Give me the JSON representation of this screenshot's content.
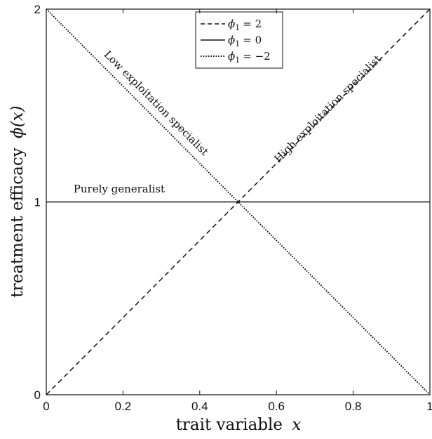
{
  "chart_data": {
    "type": "line",
    "xlabel": "trait variable",
    "xlabel_var": "x",
    "ylabel": "treatment efficacy",
    "ylabel_var": "ϕ(x)",
    "xlim": [
      0,
      1
    ],
    "ylim": [
      0,
      2
    ],
    "x_ticks": [
      "0",
      "0.2",
      "0.4",
      "0.6",
      "0.8",
      "1"
    ],
    "x_tick_values": [
      0,
      0.2,
      0.4,
      0.6,
      0.8,
      1
    ],
    "y_ticks": [
      "0",
      "1",
      "2"
    ],
    "y_tick_values": [
      0,
      1,
      2
    ],
    "grid": false,
    "legend_position": "top-center",
    "series": [
      {
        "legend_symbol": "ϕ",
        "legend_sub": "1",
        "legend_value": "= 2",
        "style": "dashed",
        "x": [
          0,
          1
        ],
        "y": [
          0,
          2
        ]
      },
      {
        "legend_symbol": "ϕ",
        "legend_sub": "1",
        "legend_value": "= 0",
        "style": "solid",
        "x": [
          0,
          1
        ],
        "y": [
          1,
          1
        ]
      },
      {
        "legend_symbol": "ϕ",
        "legend_sub": "1",
        "legend_value": "= −2",
        "style": "dotted",
        "x": [
          0,
          1
        ],
        "y": [
          2,
          0
        ]
      }
    ],
    "annotations": [
      {
        "text": "Low exploitation specialist",
        "x": 0.28,
        "y": 1.5,
        "follows_series": 2
      },
      {
        "text": "High exploitation specialist",
        "x": 0.74,
        "y": 1.47,
        "follows_series": 0
      },
      {
        "text": "Purely generalist",
        "x": 0.19,
        "y": 1.05,
        "follows_series": 1
      }
    ],
    "colors": {
      "lines": "#111111",
      "axes": "#111111",
      "background": "#ffffff"
    }
  }
}
